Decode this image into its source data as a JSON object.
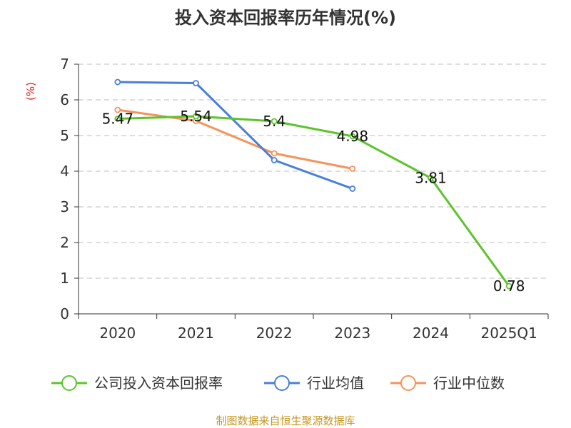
{
  "chart_data": {
    "type": "line",
    "title": "投入资本回报率历年情况(%)",
    "ylabel": "(%)",
    "categories": [
      "2020",
      "2021",
      "2022",
      "2023",
      "2024",
      "2025Q1"
    ],
    "ylim": [
      0,
      7
    ],
    "yticks": [
      "0",
      "1",
      "2",
      "3",
      "4",
      "5",
      "6",
      "7"
    ],
    "grid": true,
    "legend_position": "bottom",
    "series": [
      {
        "name": "公司投入资本回报率",
        "color": "#5cc42b",
        "values": [
          5.47,
          5.54,
          5.4,
          4.98,
          3.81,
          0.78
        ],
        "labels": [
          "5.47",
          "5.54",
          "5.4",
          "4.98",
          "3.81",
          "0.78"
        ]
      },
      {
        "name": "行业均值",
        "color": "#4a7fd8",
        "values": [
          6.5,
          6.47,
          4.31,
          3.51,
          null,
          null
        ]
      },
      {
        "name": "行业中位数",
        "color": "#f5935a",
        "values": [
          5.72,
          5.41,
          4.5,
          4.07,
          null,
          null
        ]
      }
    ]
  },
  "source": "制图数据来自恒生聚源数据库"
}
